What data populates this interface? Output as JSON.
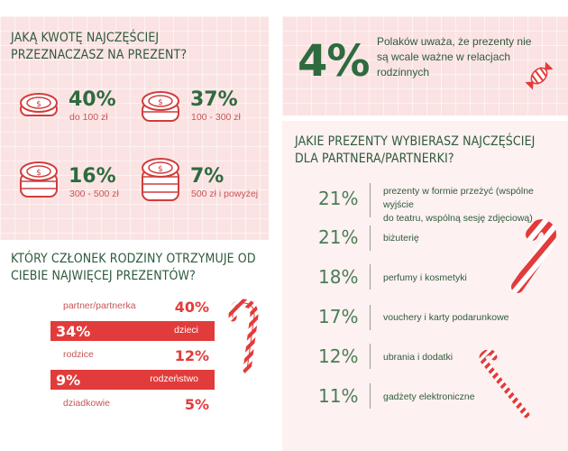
{
  "amount_section": {
    "question": "JAKĄ KWOTĘ NAJCZĘŚCIEJ PRZEZNACZASZ NA PREZENT?",
    "items": [
      {
        "percent": "40%",
        "range": "do 100 zł"
      },
      {
        "percent": "37%",
        "range": "100 - 300 zł"
      },
      {
        "percent": "16%",
        "range": "300 - 500 zł"
      },
      {
        "percent": "7%",
        "range": "500 zł i powyżej"
      }
    ]
  },
  "family_section": {
    "question": "KTÓRY CZŁONEK RODZINY OTRZYMUJE OD CIEBIE NAJWIĘCEJ PREZENTÓW?",
    "rows": [
      {
        "label": "partner/partnerka",
        "percent": "40%",
        "highlighted": false
      },
      {
        "label": "dzieci",
        "percent": "34%",
        "highlighted": true
      },
      {
        "label": "rodzice",
        "percent": "12%",
        "highlighted": false
      },
      {
        "label": "rodzeństwo",
        "percent": "9%",
        "highlighted": true
      },
      {
        "label": "dziadkowie",
        "percent": "5%",
        "highlighted": false
      }
    ]
  },
  "stat_box": {
    "percent": "4%",
    "text_line1": "Polaków uważa, że prezenty nie",
    "text_line2": "są wcale ważne w relacjach",
    "text_line3": "rodzinnych"
  },
  "gifts_section": {
    "question": "JAKIE PREZENTY WYBIERASZ NAJCZĘŚCIEJ DLA PARTNERA/PARTNERKI?",
    "items": [
      {
        "percent": "21%",
        "line1": "prezenty w formie przeżyć (wspólne wyjście",
        "line2": "do teatru, wspólną sesję zdjęciową)"
      },
      {
        "percent": "21%",
        "line1": "biżuterię",
        "line2": ""
      },
      {
        "percent": "18%",
        "line1": "perfumy i kosmetyki",
        "line2": ""
      },
      {
        "percent": "17%",
        "line1": "vouchery i karty podarunkowe",
        "line2": ""
      },
      {
        "percent": "12%",
        "line1": "ubrania i dodatki",
        "line2": ""
      },
      {
        "percent": "11%",
        "line1": "gadżety elektroniczne",
        "line2": ""
      }
    ]
  },
  "colors": {
    "green": "#2e6b3f",
    "red": "#e23b3b",
    "pink_bg": "#fbe6e6"
  },
  "icons": [
    "coin-stack-icon",
    "candy-icon",
    "candy-cane-icon"
  ]
}
